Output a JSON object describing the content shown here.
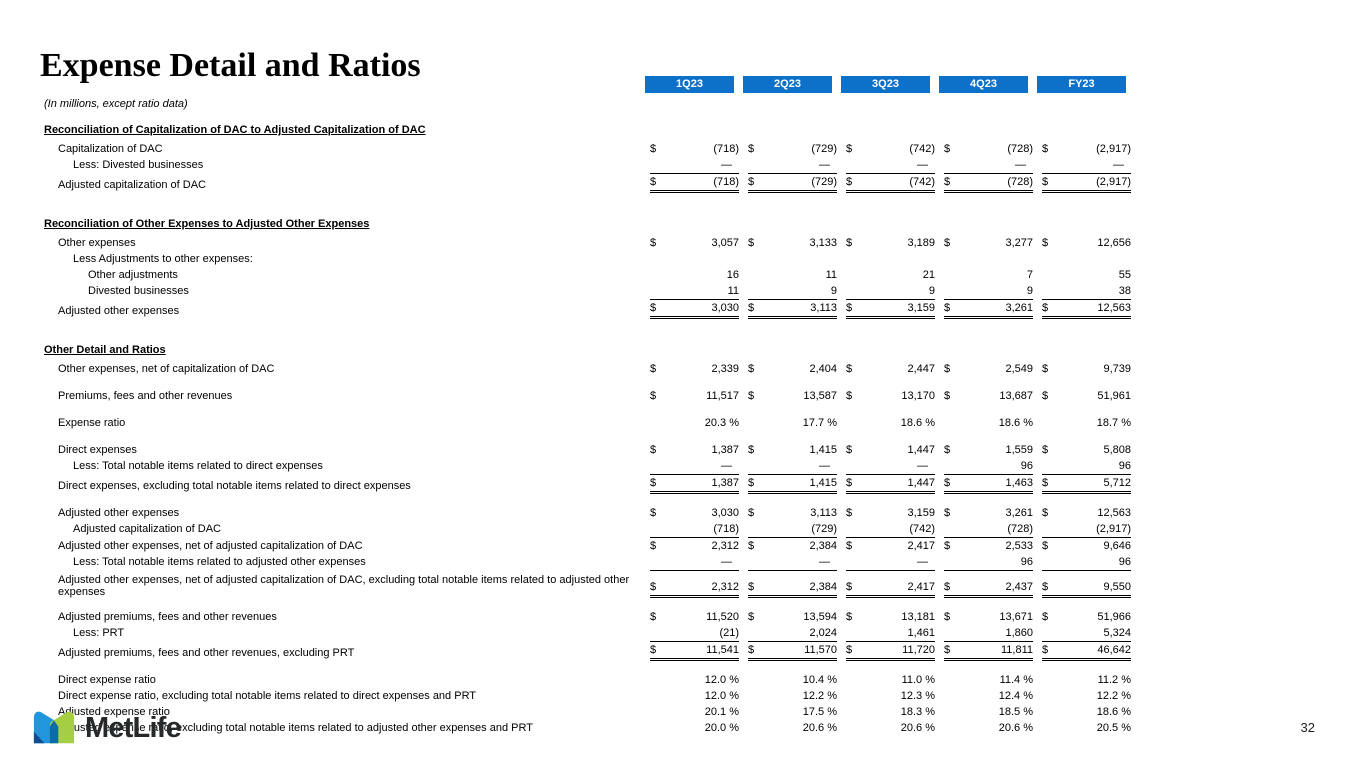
{
  "page": {
    "title": "Expense Detail and Ratios",
    "units_note": "(In millions, except ratio data)",
    "page_number": "32"
  },
  "footer": {
    "brand": "MetLife"
  },
  "colors": {
    "header_bg": "#0D70C9",
    "header_text": "#FFFFFF",
    "logo_blue": "#2196DD",
    "logo_green": "#A6CE42",
    "logo_overlap_blue": "#0C6CAB",
    "logo_navy": "#134D8D",
    "wordmark": "#26282A"
  },
  "table": {
    "columns": [
      "1Q23",
      "2Q23",
      "3Q23",
      "4Q23",
      "FY23"
    ],
    "rows": [
      {
        "type": "section",
        "label": "Reconciliation of Capitalization of DAC to Adjusted Capitalization of DAC"
      },
      {
        "type": "data",
        "indent": 1,
        "label": "Capitalization of DAC",
        "dollar": true,
        "values": [
          "(718)",
          "(729)",
          "(742)",
          "(728)",
          "(2,917)"
        ]
      },
      {
        "type": "data",
        "indent": 2,
        "label": "Less: Divested businesses",
        "values": [
          "—",
          "—",
          "—",
          "—",
          "—"
        ]
      },
      {
        "type": "data",
        "indent": 1,
        "label": "Adjusted capitalization of DAC",
        "dollar": true,
        "values": [
          "(718)",
          "(729)",
          "(742)",
          "(728)",
          "(2,917)"
        ],
        "rule": "total"
      },
      {
        "type": "gap"
      },
      {
        "type": "section",
        "label": "Reconciliation of Other Expenses to Adjusted Other Expenses"
      },
      {
        "type": "data",
        "indent": 1,
        "label": "Other expenses",
        "dollar": true,
        "values": [
          "3,057",
          "3,133",
          "3,189",
          "3,277",
          "12,656"
        ]
      },
      {
        "type": "data",
        "indent": 2,
        "label": "Less Adjustments to other expenses:",
        "values": [
          "",
          "",
          "",
          "",
          ""
        ]
      },
      {
        "type": "data",
        "indent": 3,
        "label": "Other adjustments",
        "values": [
          "16",
          "11",
          "21",
          "7",
          "55"
        ]
      },
      {
        "type": "data",
        "indent": 3,
        "label": "Divested businesses",
        "values": [
          "11",
          "9",
          "9",
          "9",
          "38"
        ]
      },
      {
        "type": "data",
        "indent": 1,
        "label": "Adjusted other expenses",
        "dollar": true,
        "values": [
          "3,030",
          "3,113",
          "3,159",
          "3,261",
          "12,563"
        ],
        "rule": "total"
      },
      {
        "type": "gap"
      },
      {
        "type": "section",
        "label": "Other Detail and Ratios"
      },
      {
        "type": "data",
        "indent": 1,
        "label": "Other expenses, net of capitalization of DAC",
        "dollar": true,
        "values": [
          "2,339",
          "2,404",
          "2,447",
          "2,549",
          "9,739"
        ]
      },
      {
        "type": "gap"
      },
      {
        "type": "data",
        "indent": 1,
        "label": "Premiums, fees and other revenues",
        "dollar": true,
        "values": [
          "11,517",
          "13,587",
          "13,170",
          "13,687",
          "51,961"
        ]
      },
      {
        "type": "gap"
      },
      {
        "type": "data",
        "indent": 1,
        "label": "Expense ratio",
        "values": [
          "20.3 %",
          "17.7 %",
          "18.6 %",
          "18.6 %",
          "18.7 %"
        ]
      },
      {
        "type": "gap"
      },
      {
        "type": "data",
        "indent": 1,
        "label": "Direct expenses",
        "dollar": true,
        "values": [
          "1,387",
          "1,415",
          "1,447",
          "1,559",
          "5,808"
        ]
      },
      {
        "type": "data",
        "indent": 2,
        "label": "Less: Total notable items related to direct expenses",
        "values": [
          "—",
          "—",
          "—",
          "96",
          "96"
        ]
      },
      {
        "type": "data",
        "indent": 1,
        "label": "Direct expenses, excluding total notable items related to direct expenses",
        "dollar": true,
        "values": [
          "1,387",
          "1,415",
          "1,447",
          "1,463",
          "5,712"
        ],
        "rule": "total"
      },
      {
        "type": "gap"
      },
      {
        "type": "data",
        "indent": 1,
        "label": "Adjusted other expenses",
        "dollar": true,
        "values": [
          "3,030",
          "3,113",
          "3,159",
          "3,261",
          "12,563"
        ]
      },
      {
        "type": "data",
        "indent": 2,
        "label": "Adjusted capitalization of DAC",
        "values": [
          "(718)",
          "(729)",
          "(742)",
          "(728)",
          "(2,917)"
        ]
      },
      {
        "type": "data",
        "indent": 1,
        "label": "Adjusted other expenses, net of adjusted capitalization of DAC",
        "dollar": true,
        "values": [
          "2,312",
          "2,384",
          "2,417",
          "2,533",
          "9,646"
        ],
        "rule": "top"
      },
      {
        "type": "data",
        "indent": 2,
        "label": "Less: Total notable items related to adjusted other expenses",
        "values": [
          "—",
          "—",
          "—",
          "96",
          "96"
        ]
      },
      {
        "type": "data",
        "indent": 1,
        "label": "Adjusted other expenses, net of adjusted capitalization of DAC, excluding total notable items related to adjusted other expenses",
        "dollar": true,
        "values": [
          "2,312",
          "2,384",
          "2,417",
          "2,437",
          "9,550"
        ],
        "rule": "total",
        "tall": true
      },
      {
        "type": "gap"
      },
      {
        "type": "data",
        "indent": 1,
        "label": "Adjusted premiums, fees and other revenues",
        "dollar": true,
        "values": [
          "11,520",
          "13,594",
          "13,181",
          "13,671",
          "51,966"
        ]
      },
      {
        "type": "data",
        "indent": 2,
        "label": "Less: PRT",
        "values": [
          "(21)",
          "2,024",
          "1,461",
          "1,860",
          "5,324"
        ]
      },
      {
        "type": "data",
        "indent": 1,
        "label": "Adjusted premiums, fees and other revenues, excluding PRT",
        "dollar": true,
        "values": [
          "11,541",
          "11,570",
          "11,720",
          "11,811",
          "46,642"
        ],
        "rule": "total"
      },
      {
        "type": "gap"
      },
      {
        "type": "data",
        "indent": 1,
        "label": "Direct expense ratio",
        "values": [
          "12.0 %",
          "10.4 %",
          "11.0 %",
          "11.4 %",
          "11.2 %"
        ]
      },
      {
        "type": "data",
        "indent": 1,
        "label": "Direct expense ratio, excluding total notable items related to direct expenses and PRT",
        "values": [
          "12.0 %",
          "12.2 %",
          "12.3 %",
          "12.4 %",
          "12.2 %"
        ]
      },
      {
        "type": "data",
        "indent": 1,
        "label": "Adjusted expense ratio",
        "values": [
          "20.1 %",
          "17.5 %",
          "18.3 %",
          "18.5 %",
          "18.6 %"
        ]
      },
      {
        "type": "data",
        "indent": 1,
        "label": "Adjusted expense ratio, excluding total notable items related to adjusted other expenses and PRT",
        "values": [
          "20.0 %",
          "20.6 %",
          "20.6 %",
          "20.6 %",
          "20.5 %"
        ]
      }
    ]
  }
}
